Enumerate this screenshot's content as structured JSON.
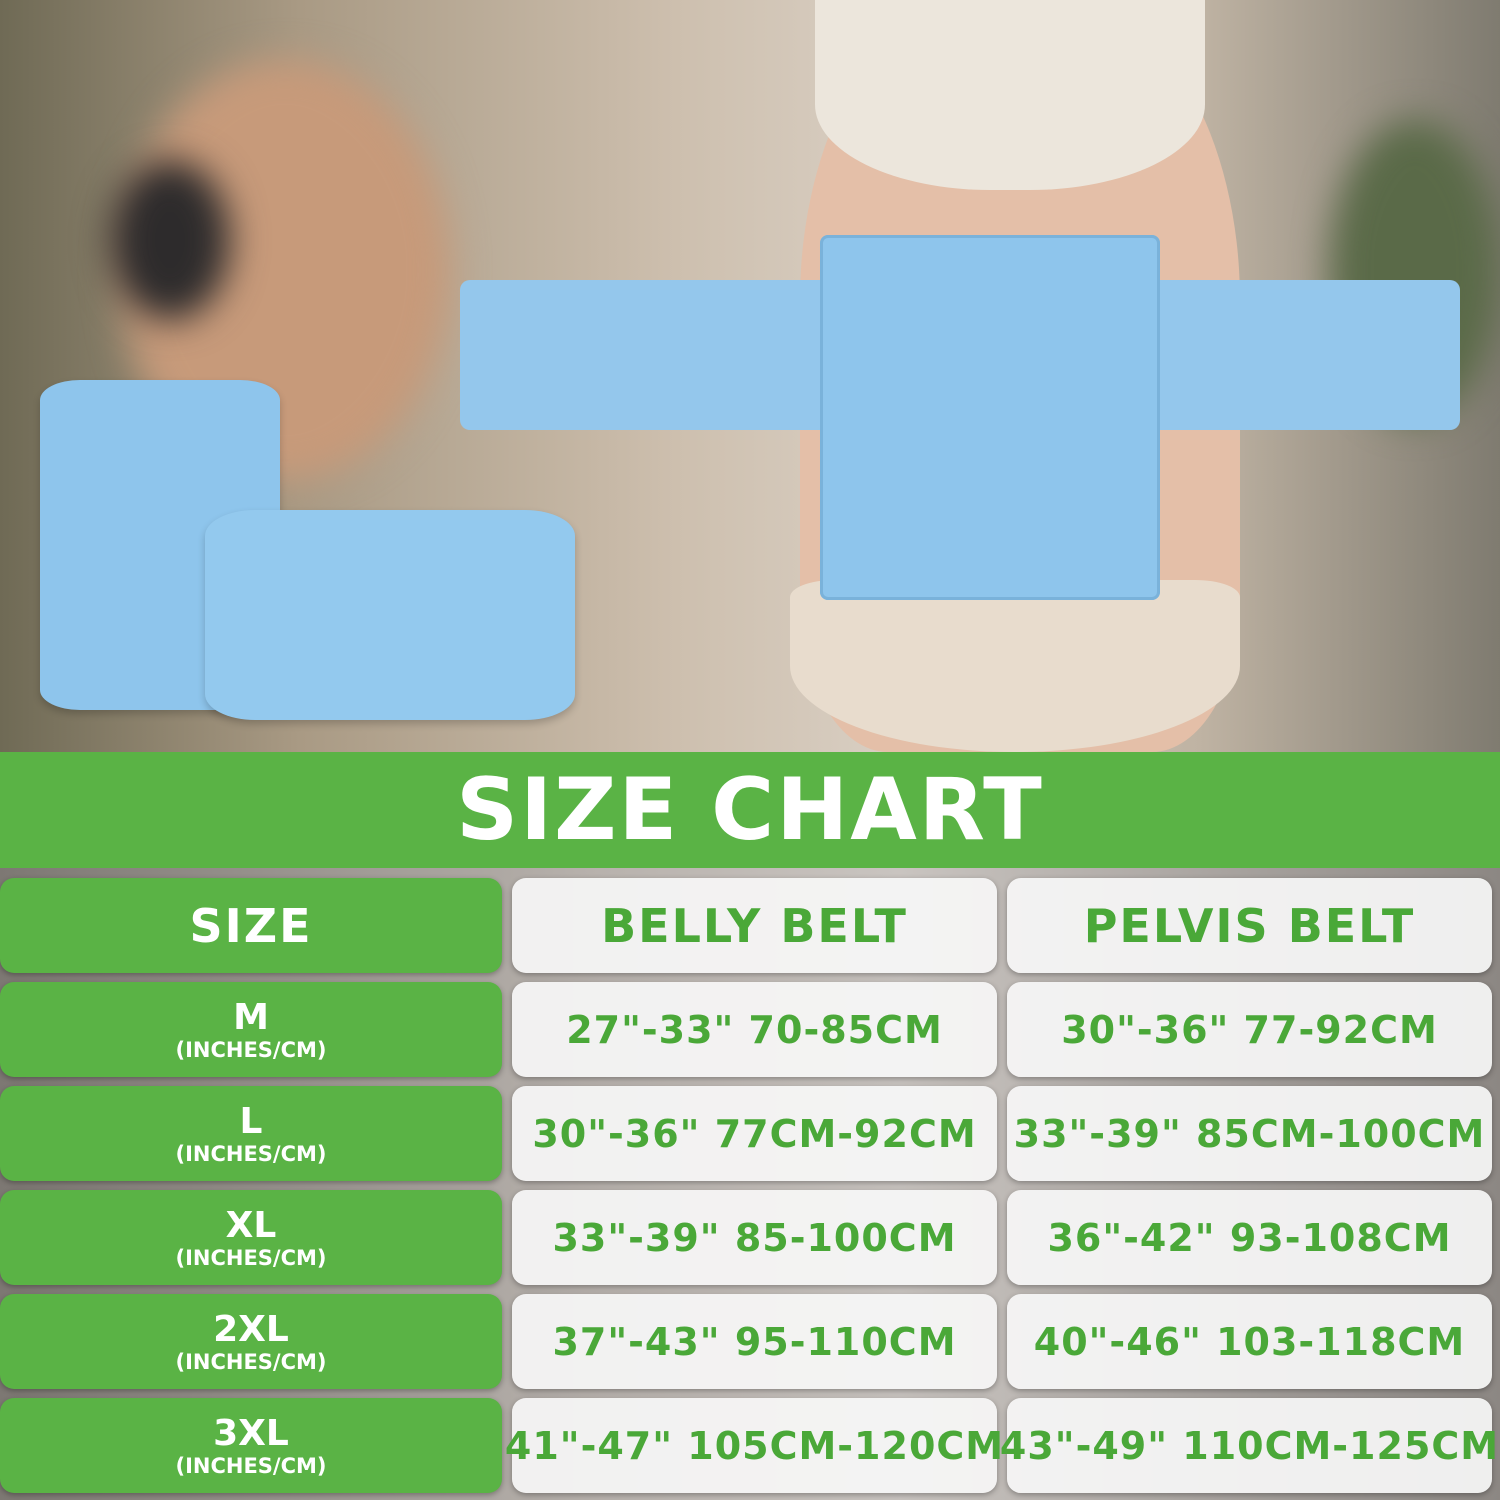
{
  "title": "SIZE CHART",
  "headers": [
    "SIZE",
    "BELLY BELT",
    "PELVIS BELT"
  ],
  "unit_label": "(INCHES/CM)",
  "rows": [
    {
      "size": "M",
      "belly": "27\"-33\" 70-85CM",
      "pelvis": "30\"-36\" 77-92CM"
    },
    {
      "size": "L",
      "belly": "30\"-36\" 77CM-92CM",
      "pelvis": "33\"-39\" 85CM-100CM"
    },
    {
      "size": "XL",
      "belly": "33\"-39\" 85-100CM",
      "pelvis": "36\"-42\" 93-108CM"
    },
    {
      "size": "2XL",
      "belly": "37\"-43\" 95-110CM",
      "pelvis": "40\"-46\" 103-118CM"
    },
    {
      "size": "3XL",
      "belly": "41\"-47\" 105CM-120CM",
      "pelvis": "43\"-49\" 110CM-125CM"
    }
  ],
  "colors": {
    "green": "#5ab345",
    "text_green": "#4aa838",
    "belt_blue": "#8ec5ec"
  }
}
